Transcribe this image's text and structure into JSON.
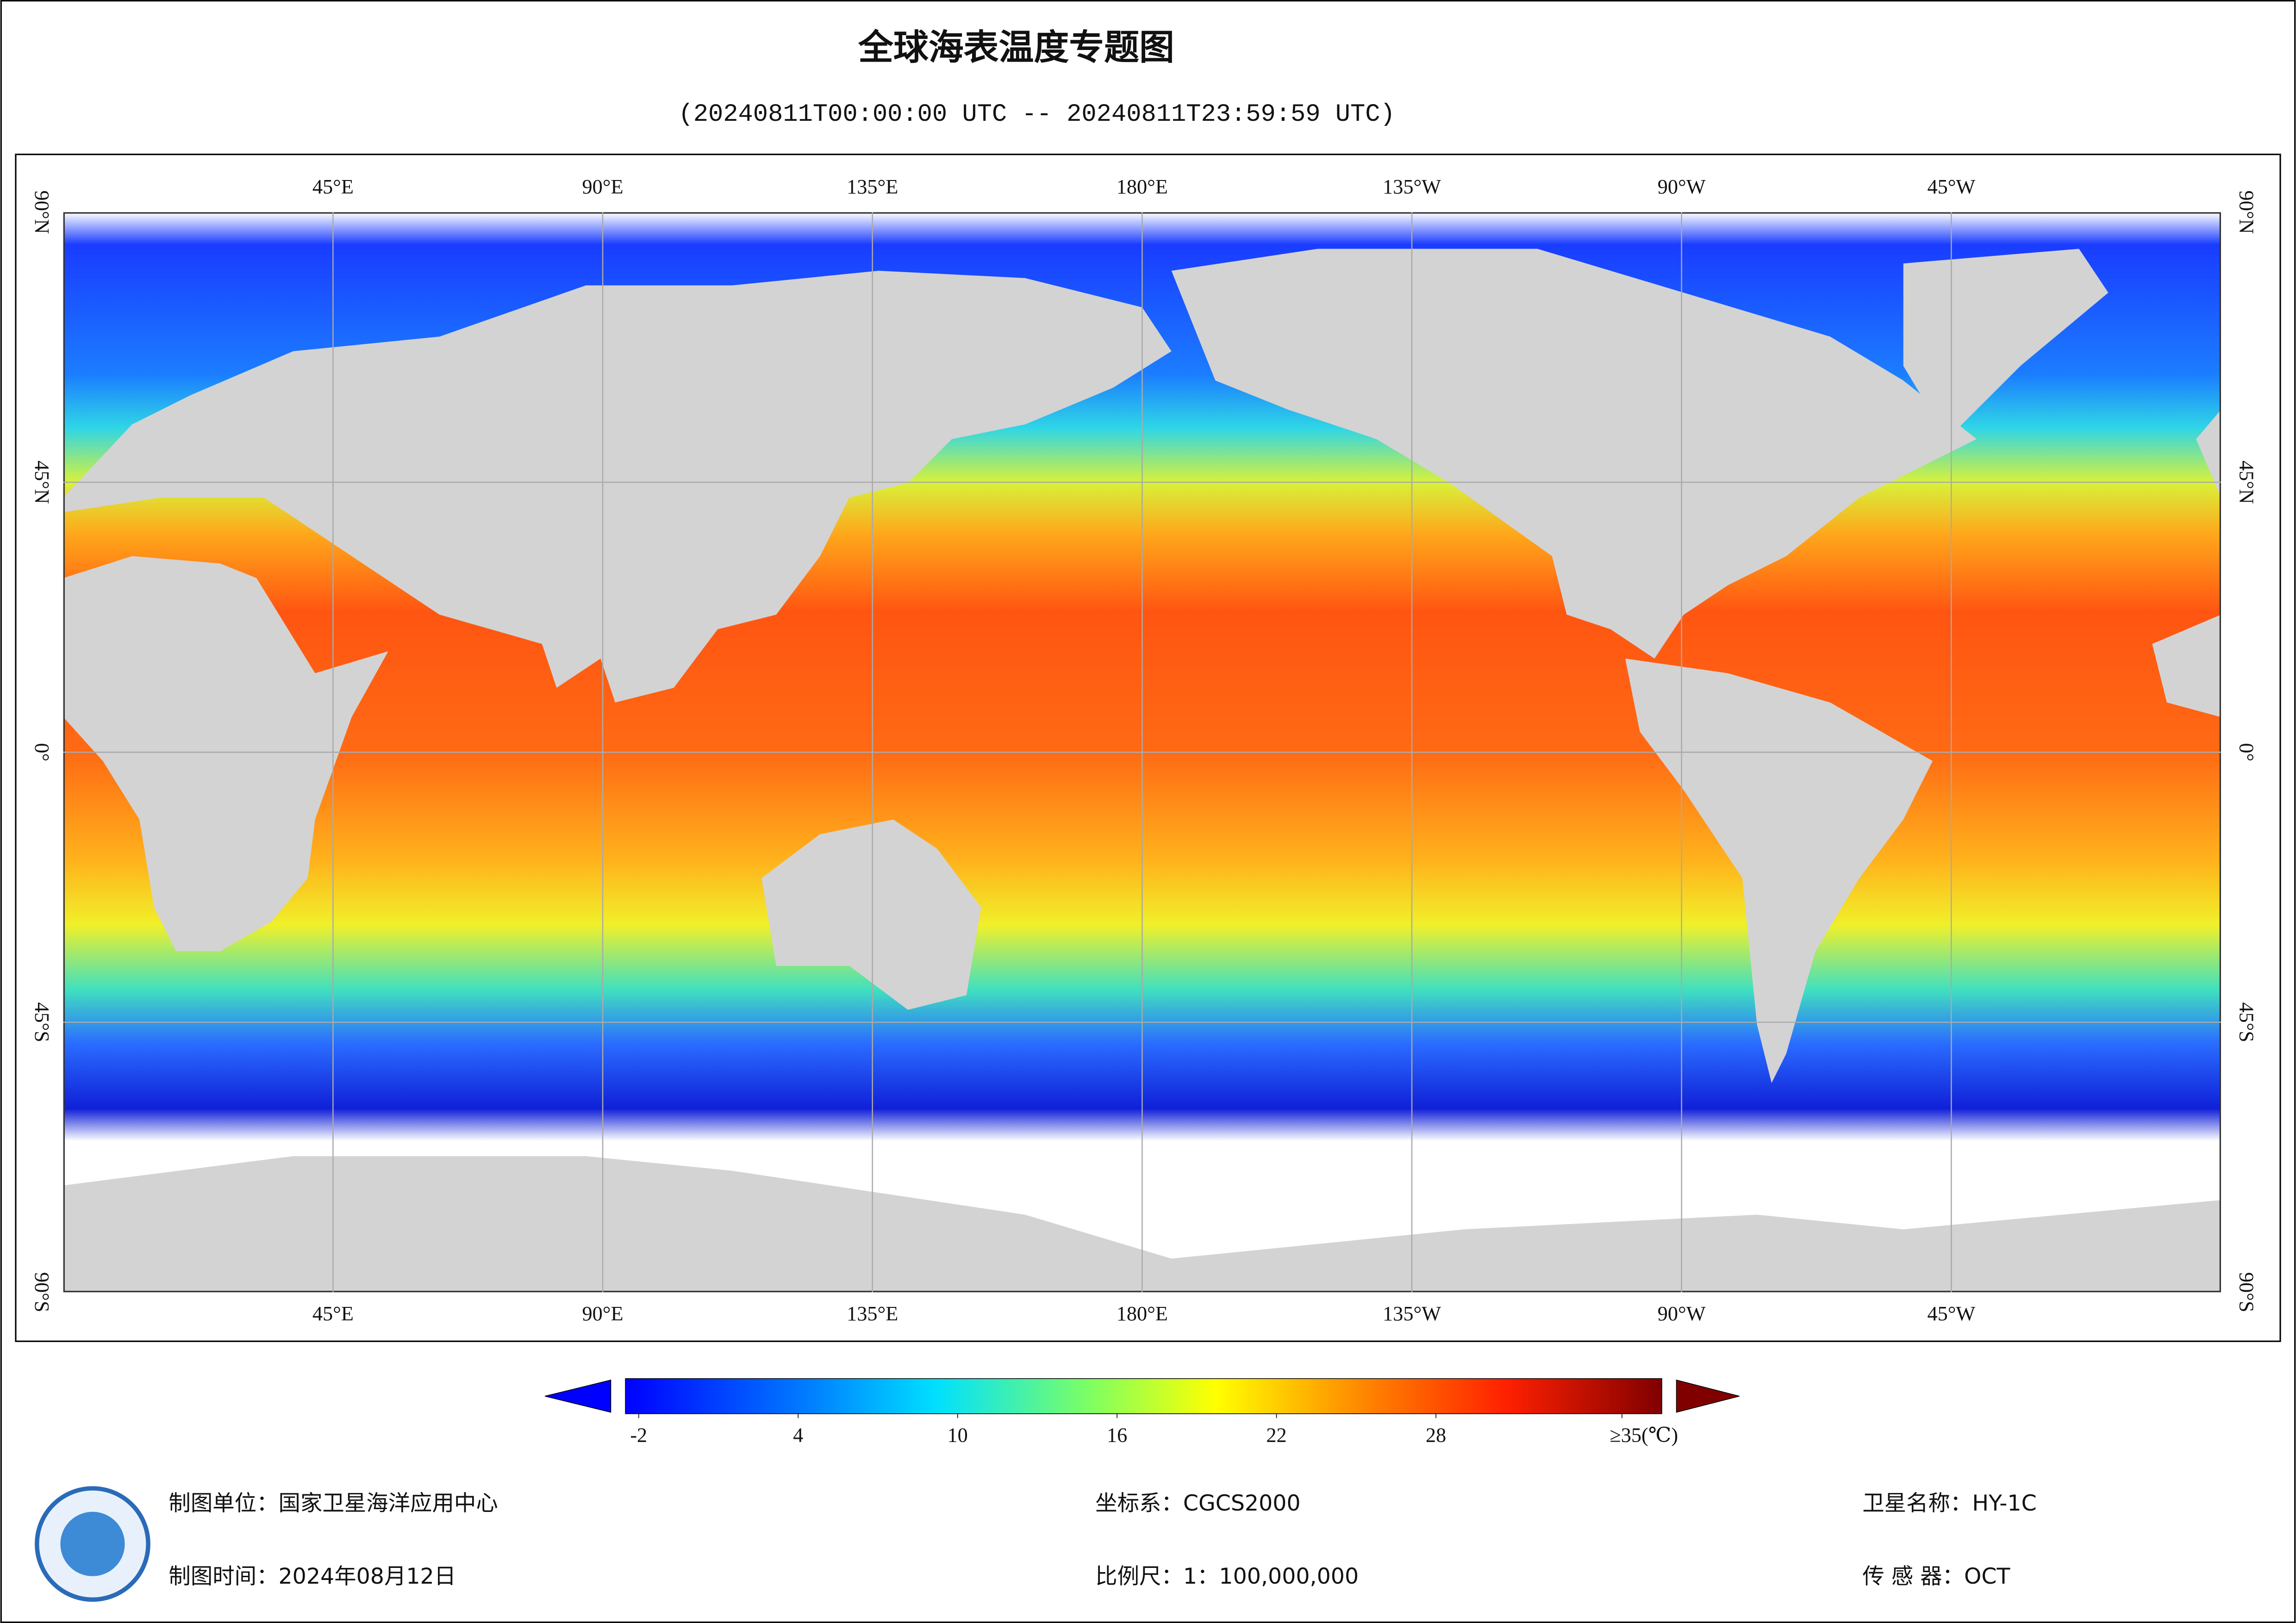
{
  "header": {
    "title": "全球海表温度专题图",
    "subtitle": "(20240811T00:00:00 UTC -- 20240811T23:59:59 UTC)"
  },
  "map": {
    "lon_labels": [
      "45°E",
      "90°E",
      "135°E",
      "180°E",
      "135°W",
      "90°W",
      "45°W"
    ],
    "lat_labels": [
      "90°N",
      "45°N",
      "0°",
      "45°S",
      "90°S"
    ]
  },
  "colorbar": {
    "range": [
      -2.5,
      36.5
    ],
    "ticks": [
      -2,
      4,
      10,
      16,
      22,
      28,
      {
        "value": 35,
        "label": "≥35(℃)"
      }
    ]
  },
  "footer": {
    "unit": "制图单位：国家卫星海洋应用中心",
    "date": "制图时间：2024年08月12日",
    "crs": "坐标系：CGCS2000",
    "scale": "比例尺：1：100,000,000",
    "satellite": "卫星名称：HY-1C",
    "sensor": "传 感 器：OCT"
  }
}
